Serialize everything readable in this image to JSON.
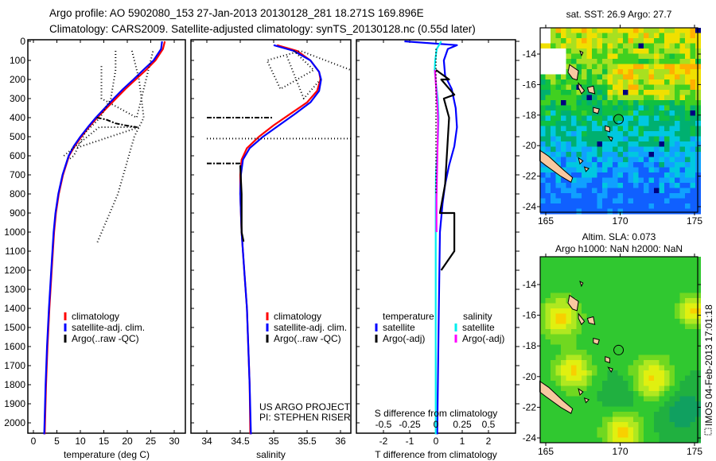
{
  "header": {
    "line1": "Argo profile: AO 5902080_153 27-Jan-2013 20130128_281 18.271S 169.896E",
    "line2": "Climatology: CARS2009. Satellite-adjusted climatology: synTS_20130128.nc (0.55d later)"
  },
  "colors": {
    "climatology": "#ff0000",
    "satellite": "#0000ff",
    "argo": "#000000",
    "sal_satellite": "#00eeee",
    "sal_argo": "#ff00ff"
  },
  "chart_data": [
    {
      "type": "line",
      "id": "temperature",
      "xlabel": "temperature (deg C)",
      "xlim": [
        -1,
        31
      ],
      "xticks": [
        0,
        5,
        10,
        15,
        20,
        25,
        30
      ],
      "ylim": [
        0,
        2060
      ],
      "yticks": [
        0,
        100,
        200,
        300,
        400,
        500,
        600,
        700,
        800,
        900,
        1000,
        1100,
        1200,
        1300,
        1400,
        1500,
        1600,
        1700,
        1800,
        1900,
        2000
      ],
      "show_ylabels": true,
      "legend": [
        "climatology",
        "satellite-adj. clim.",
        "Argo(..raw -QC)"
      ],
      "series": [
        {
          "name": "climatology",
          "color": "#ff0000",
          "points": [
            [
              28,
              0
            ],
            [
              27.6,
              40
            ],
            [
              26,
              100
            ],
            [
              24,
              150
            ],
            [
              21.8,
              200
            ],
            [
              19.6,
              250
            ],
            [
              17.6,
              300
            ],
            [
              15.6,
              350
            ],
            [
              13.6,
              400
            ],
            [
              11.8,
              450
            ],
            [
              10.2,
              500
            ],
            [
              8.8,
              550
            ],
            [
              7.6,
              600
            ],
            [
              6.3,
              700
            ],
            [
              5.4,
              800
            ],
            [
              4.8,
              900
            ],
            [
              4.4,
              1000
            ],
            [
              3.9,
              1200
            ],
            [
              3.4,
              1400
            ],
            [
              3.0,
              1600
            ],
            [
              2.7,
              1800
            ],
            [
              2.4,
              2060
            ]
          ]
        },
        {
          "name": "satellite-adj. clim.",
          "color": "#0000ff",
          "points": [
            [
              27.4,
              0
            ],
            [
              27.2,
              40
            ],
            [
              25.6,
              100
            ],
            [
              23.4,
              150
            ],
            [
              21.3,
              200
            ],
            [
              19.1,
              250
            ],
            [
              17.1,
              300
            ],
            [
              15.2,
              350
            ],
            [
              13.3,
              400
            ],
            [
              11.6,
              450
            ],
            [
              10,
              500
            ],
            [
              8.6,
              550
            ],
            [
              7.5,
              600
            ],
            [
              6.2,
              700
            ],
            [
              5.3,
              800
            ],
            [
              4.7,
              900
            ],
            [
              4.3,
              1000
            ],
            [
              3.8,
              1200
            ],
            [
              3.3,
              1400
            ],
            [
              2.9,
              1600
            ],
            [
              2.6,
              1800
            ],
            [
              2.3,
              2060
            ]
          ]
        },
        {
          "name": "Argo(..raw -QC)",
          "color": "#000000",
          "dash": "6 2 2 2",
          "points": [
            [
              13.5,
              400
            ],
            [
              15.5,
              410
            ],
            [
              17.5,
              430
            ],
            [
              19.5,
              440
            ],
            [
              22,
              450
            ]
          ]
        },
        {
          "name": "Argo-raw-dotted-1",
          "color": "#000000",
          "dash": "1 3",
          "points": [
            [
              17.5,
              50
            ],
            [
              17.5,
              150
            ],
            [
              16.5,
              300
            ],
            [
              14.2,
              400
            ],
            [
              11,
              480
            ],
            [
              8.6,
              600
            ],
            [
              7.5,
              620
            ]
          ]
        },
        {
          "name": "Argo-raw-dotted-2",
          "color": "#000000",
          "dash": "1 3",
          "points": [
            [
              21,
              50
            ],
            [
              22.5,
              200
            ],
            [
              23.5,
              400
            ],
            [
              21.5,
              500
            ],
            [
              18,
              800
            ],
            [
              13.5,
              1060
            ]
          ]
        },
        {
          "name": "Argo-raw-dotted-3",
          "color": "#000000",
          "dash": "1 3",
          "points": [
            [
              14.5,
              130
            ],
            [
              14.5,
              300
            ],
            [
              22,
              400
            ],
            [
              25,
              100
            ],
            [
              25.5,
              50
            ]
          ]
        },
        {
          "name": "Argo-raw-dotted-4",
          "color": "#000000",
          "dash": "1 3",
          "points": [
            [
              6.5,
              600
            ],
            [
              14,
              450
            ],
            [
              22.5,
              450
            ],
            [
              9,
              560
            ]
          ]
        }
      ]
    },
    {
      "type": "line",
      "id": "salinity",
      "xlabel": "salinity",
      "xlim": [
        33.75,
        36.15
      ],
      "xticks": [
        34,
        34.5,
        35,
        35.5,
        36
      ],
      "ylim": [
        0,
        2060
      ],
      "yticks": [
        0,
        100,
        200,
        300,
        400,
        500,
        600,
        700,
        800,
        900,
        1000,
        1100,
        1200,
        1300,
        1400,
        1500,
        1600,
        1700,
        1800,
        1900,
        2000
      ],
      "show_ylabels": false,
      "legend": [
        "climatology",
        "satellite-adj. clim.",
        "Argo(..raw -QC)"
      ],
      "credits": [
        "US ARGO PROJECT",
        "PI: STEPHEN RISER"
      ],
      "series": [
        {
          "name": "climatology",
          "color": "#ff0000",
          "points": [
            [
              35.05,
              20
            ],
            [
              35.35,
              50
            ],
            [
              35.55,
              100
            ],
            [
              35.68,
              160
            ],
            [
              35.7,
              200
            ],
            [
              35.65,
              260
            ],
            [
              35.5,
              320
            ],
            [
              35.25,
              380
            ],
            [
              35.0,
              440
            ],
            [
              34.78,
              500
            ],
            [
              34.6,
              560
            ],
            [
              34.52,
              620
            ],
            [
              34.5,
              700
            ],
            [
              34.5,
              800
            ],
            [
              34.52,
              1000
            ],
            [
              34.56,
              1200
            ],
            [
              34.6,
              1400
            ],
            [
              34.62,
              1600
            ],
            [
              34.64,
              1800
            ],
            [
              34.65,
              2060
            ]
          ]
        },
        {
          "name": "satellite-adj. clim.",
          "color": "#0000ff",
          "points": [
            [
              35.0,
              20
            ],
            [
              35.3,
              50
            ],
            [
              35.55,
              100
            ],
            [
              35.68,
              160
            ],
            [
              35.71,
              200
            ],
            [
              35.68,
              260
            ],
            [
              35.55,
              320
            ],
            [
              35.32,
              380
            ],
            [
              35.08,
              440
            ],
            [
              34.84,
              500
            ],
            [
              34.64,
              560
            ],
            [
              34.54,
              620
            ],
            [
              34.51,
              700
            ],
            [
              34.5,
              800
            ],
            [
              34.52,
              1000
            ],
            [
              34.56,
              1200
            ],
            [
              34.6,
              1400
            ],
            [
              34.62,
              1600
            ],
            [
              34.64,
              1800
            ],
            [
              34.66,
              2060
            ]
          ]
        },
        {
          "name": "Argo(..raw -QC)",
          "color": "#000000",
          "dash": "6 2 2 2",
          "points": [
            [
              34.0,
              400
            ],
            [
              35.0,
              400
            ]
          ]
        },
        {
          "name": "Argo-dashdot-2",
          "color": "#000000",
          "dash": "6 2 2 2",
          "points": [
            [
              34.0,
              640
            ],
            [
              34.5,
              640
            ]
          ]
        },
        {
          "name": "Argo-dotted-1",
          "color": "#000000",
          "dash": "1 3",
          "points": [
            [
              34.0,
              510
            ],
            [
              36.15,
              510
            ]
          ]
        },
        {
          "name": "Argo-dotted-2",
          "color": "#000000",
          "dash": "1 3",
          "points": [
            [
              35.3,
              50
            ],
            [
              35.6,
              150
            ],
            [
              35.1,
              250
            ],
            [
              34.9,
              100
            ],
            [
              35.4,
              50
            ],
            [
              36.15,
              150
            ]
          ]
        },
        {
          "name": "Argo-dotted-3",
          "color": "#000000",
          "dash": "1 3",
          "points": [
            [
              35.2,
              80
            ],
            [
              35.45,
              300
            ],
            [
              35.7,
              200
            ]
          ]
        },
        {
          "name": "Argo-qc",
          "color": "#000000",
          "points": [
            [
              34.5,
              650
            ],
            [
              34.52,
              800
            ],
            [
              34.52,
              1000
            ],
            [
              34.55,
              1050
            ]
          ]
        }
      ]
    },
    {
      "type": "line",
      "id": "difference",
      "xlabel": "T difference from climatology",
      "xlabel_top": "S difference from climatology",
      "xlim": [
        -3,
        3
      ],
      "xticks": [
        -2,
        -1,
        0,
        1,
        2
      ],
      "xticks_s": [
        "-0.5",
        "-0.25",
        "0",
        "0.25",
        "0.5"
      ],
      "ylim": [
        0,
        2060
      ],
      "yticks": [
        0,
        100,
        200,
        300,
        400,
        500,
        600,
        700,
        800,
        900,
        1000,
        1100,
        1200,
        1300,
        1400,
        1500,
        1600,
        1700,
        1800,
        1900,
        2000
      ],
      "show_ylabels": false,
      "legend_temperature": {
        "title": "temperature",
        "items": [
          "satellite",
          "Argo(-adj)"
        ]
      },
      "legend_salinity": {
        "title": "salinity",
        "items": [
          "satellite",
          "Argo(-adj)"
        ]
      },
      "series": [
        {
          "name": "T satellite",
          "color": "#0000ff",
          "points": [
            [
              -1.2,
              0
            ],
            [
              0.8,
              20
            ],
            [
              0.45,
              40
            ],
            [
              0.3,
              100
            ],
            [
              0.35,
              180
            ],
            [
              0.6,
              250
            ],
            [
              0.75,
              350
            ],
            [
              0.8,
              450
            ],
            [
              0.7,
              550
            ],
            [
              0.5,
              650
            ],
            [
              0.35,
              750
            ],
            [
              0.25,
              850
            ],
            [
              0.15,
              1000
            ],
            [
              0.1,
              1500
            ],
            [
              0.05,
              2060
            ]
          ]
        },
        {
          "name": "T Argo(-adj)",
          "color": "#000000",
          "points": [
            [
              0,
              150
            ],
            [
              0.5,
              200
            ],
            [
              0.2,
              200
            ],
            [
              0.7,
              280
            ],
            [
              0.3,
              300
            ],
            [
              0.5,
              400
            ],
            [
              0.35,
              750
            ],
            [
              0.15,
              900
            ],
            [
              0.7,
              900
            ],
            [
              0.7,
              1100
            ],
            [
              0.2,
              1200
            ]
          ]
        },
        {
          "name": "S satellite",
          "color": "#00eeee",
          "points": [
            [
              0.2,
              0
            ],
            [
              0.03,
              40
            ],
            [
              -0.03,
              100
            ],
            [
              -0.05,
              150
            ],
            [
              0,
              220
            ],
            [
              0.07,
              300
            ],
            [
              0.1,
              400
            ],
            [
              0.08,
              500
            ],
            [
              0.04,
              600
            ],
            [
              0.0,
              700
            ],
            [
              -0.01,
              900
            ],
            [
              -0.01,
              1400
            ],
            [
              -0.01,
              2060
            ]
          ]
        },
        {
          "name": "S Argo(-adj)",
          "color": "#ff00ff",
          "points": [
            [
              -0.04,
              150
            ],
            [
              0,
              230
            ],
            [
              0.07,
              370
            ],
            [
              0.08,
              430
            ],
            [
              0.02,
              820
            ],
            [
              0.02,
              1000
            ]
          ]
        },
        {
          "name": "zero",
          "color": "#000000",
          "dash": "1 3",
          "points": [
            [
              0,
              40
            ],
            [
              0,
              800
            ]
          ]
        }
      ]
    },
    {
      "type": "heatmap",
      "id": "sst_map",
      "title": "sat. SST: 26.9 Argo: 27.7",
      "xlim": [
        164.6,
        175.3
      ],
      "ylim": [
        -24.4,
        -12.3
      ],
      "xticks": [
        165,
        170,
        175
      ],
      "yticks": [
        -14,
        -16,
        -18,
        -20,
        -22,
        -24
      ],
      "argo_position": [
        169.896,
        -18.271
      ]
    },
    {
      "type": "heatmap",
      "id": "sla_map",
      "title": "Altim. SLA: 0.073",
      "subtitle": "Argo h1000: NaN h2000: NaN",
      "xlim": [
        164.6,
        175.3
      ],
      "ylim": [
        -24.4,
        -12.3
      ],
      "xticks": [
        165,
        170,
        175
      ],
      "yticks": [
        -14,
        -16,
        -18,
        -20,
        -22,
        -24
      ],
      "argo_position": [
        169.896,
        -18.271
      ],
      "side_label": "IMOS 04-Feb-2013 17:01:18"
    }
  ]
}
